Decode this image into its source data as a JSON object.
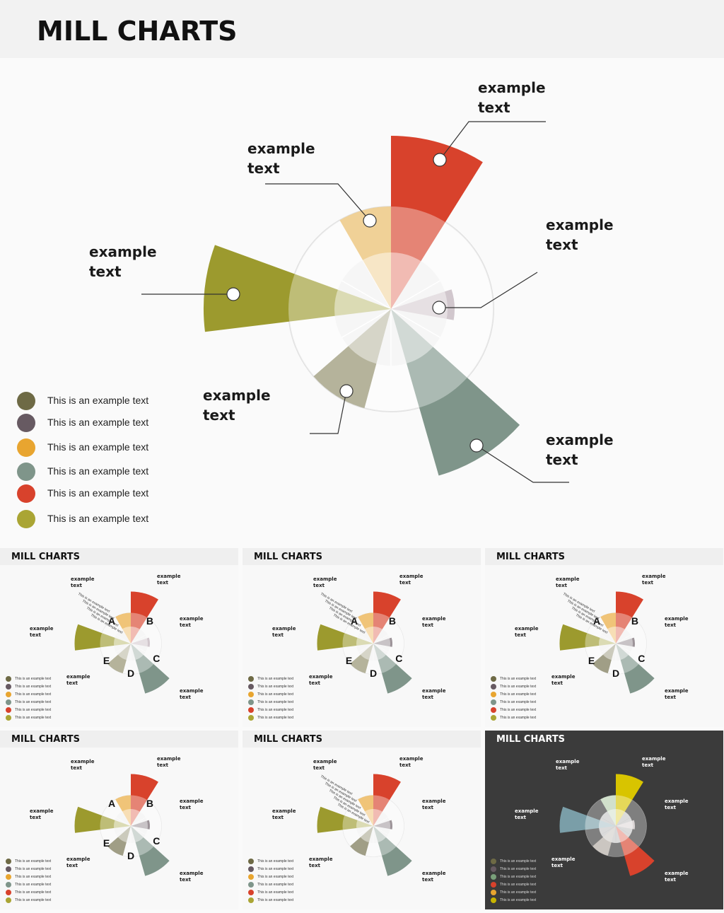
{
  "header": {
    "title": "MILL CHARTS"
  },
  "main": {
    "labels": [
      "example text",
      "example text",
      "example text",
      "example text",
      "example text",
      "example text"
    ],
    "wedge_colors": [
      "#d8422c",
      "#b9aab2",
      "#7f958a",
      "#8e8a66",
      "#9c9a2e",
      "#e8b860"
    ],
    "legend": [
      {
        "text": "This is an example text",
        "color": "#6e6a45"
      },
      {
        "text": "This is an example text",
        "color": "#675a62"
      },
      {
        "text": "This is an example text",
        "color": "#e8a530"
      },
      {
        "text": "This is an example text",
        "color": "#7f958a"
      },
      {
        "text": "This is an example text",
        "color": "#d8422c"
      },
      {
        "text": "This is an example text",
        "color": "#aaa534"
      }
    ]
  },
  "thumbnails": [
    {
      "title": "MILL CHARTS",
      "dark": false,
      "labels": [
        "example text",
        "example text",
        "example text",
        "example text",
        "example text",
        "example text"
      ],
      "letters": [
        "A",
        "B",
        "C",
        "D",
        "E"
      ],
      "notes": [
        "This is an example text",
        "This is an example text",
        "This is an example text",
        "This is an example text"
      ],
      "legend": [
        "This is an example text",
        "This is an example text",
        "This is an example text",
        "This is an example text",
        "This is an example text",
        "This is an example text"
      ],
      "legend_colors": [
        "#6e6a45",
        "#675a62",
        "#e8a530",
        "#7f958a",
        "#d8422c",
        "#aaa534"
      ],
      "wedge_colors": [
        "#d8422c",
        "#b9aab2",
        "#7f958a",
        "#8e8a66",
        "#9c9a2e",
        "#e8a530"
      ]
    },
    {
      "title": "MILL CHARTS",
      "dark": false,
      "labels": [
        "example text",
        "example text",
        "example text",
        "example text",
        "example text",
        "example text"
      ],
      "letters": [
        "A",
        "B",
        "C",
        "D",
        "E"
      ],
      "notes": [
        "This is an example text",
        "This is an example text",
        "This is an example text",
        "This is an example text"
      ],
      "legend": [
        "This is an example text",
        "This is an example text",
        "This is an example text",
        "This is an example text",
        "This is an example text",
        "This is an example text"
      ],
      "legend_colors": [
        "#6e6a45",
        "#675a62",
        "#e8a530",
        "#7f958a",
        "#d8422c",
        "#aaa534"
      ],
      "wedge_colors": [
        "#d8422c",
        "#675a62",
        "#7f958a",
        "#8e8a66",
        "#9c9a2e",
        "#e8a530"
      ]
    },
    {
      "title": "MILL CHARTS",
      "dark": false,
      "labels": [
        "example text",
        "example text",
        "example text",
        "example text",
        "example text",
        "example text"
      ],
      "letters": [
        "A",
        "B",
        "C",
        "D",
        "E"
      ],
      "notes": [
        "This is an example text",
        "This is an example text",
        "This is an example text",
        "This is an example text"
      ],
      "legend": [
        "This is an example text",
        "This is an example text",
        "This is an example text",
        "This is an example text",
        "This is an example text",
        "This is an example text"
      ],
      "legend_colors": [
        "#6e6a45",
        "#675a62",
        "#e8a530",
        "#7f958a",
        "#d8422c",
        "#aaa534"
      ],
      "wedge_colors": [
        "#d8422c",
        "#675a62",
        "#7f958a",
        "#6e6a45",
        "#9c9a2e",
        "#e8a530"
      ]
    },
    {
      "title": "MILL CHARTS",
      "dark": false,
      "labels": [
        "example text",
        "example text",
        "example text",
        "example text",
        "example text",
        "example text"
      ],
      "letters": [
        "A",
        "B",
        "C",
        "D",
        "E"
      ],
      "notes": [],
      "legend": [
        "This is an example text",
        "This is an example text",
        "This is an example text",
        "This is an example text",
        "This is an example text",
        "This is an example text"
      ],
      "legend_colors": [
        "#6e6a45",
        "#675a62",
        "#e8a530",
        "#7f958a",
        "#d8422c",
        "#aaa534"
      ],
      "wedge_colors": [
        "#d8422c",
        "#675a62",
        "#7f958a",
        "#6e6a45",
        "#9c9a2e",
        "#e8a530"
      ]
    },
    {
      "title": "MILL CHARTS",
      "dark": false,
      "labels": [
        "example text",
        "example text",
        "example text",
        "example text",
        "example text",
        "example text"
      ],
      "letters": [],
      "notes": [
        "This is an example text",
        "This is an example text",
        "This is an example text",
        "This is an example text",
        "This is an example text"
      ],
      "legend": [
        "This is an example text",
        "This is an example text",
        "This is an example text",
        "This is an example text",
        "This is an example text",
        "This is an example text"
      ],
      "legend_colors": [
        "#6e6a45",
        "#675a62",
        "#e8a530",
        "#7f958a",
        "#d8422c",
        "#aaa534"
      ],
      "wedge_colors": [
        "#d8422c",
        "#675a62",
        "#7f958a",
        "#6e6a45",
        "#9c9a2e",
        "#e8a530"
      ]
    },
    {
      "title": "MILL CHARTS",
      "dark": true,
      "labels": [
        "example text",
        "example text",
        "example text",
        "example text",
        "example text",
        "example text"
      ],
      "letters": [],
      "notes": [],
      "legend": [
        "This is an example text",
        "This is an example text",
        "This is an example text",
        "This is an example text",
        "This is an example text",
        "This is an example text"
      ],
      "legend_colors": [
        "#6e6a45",
        "#675a62",
        "#7aa07a",
        "#d8422c",
        "#e8a530",
        "#c8b400"
      ],
      "wedge_colors": [
        "#d8c400",
        "#c9c0c0",
        "#d8422c",
        "#b0a8a0",
        "#7a9ea8",
        "#b8d0b0"
      ]
    }
  ]
}
